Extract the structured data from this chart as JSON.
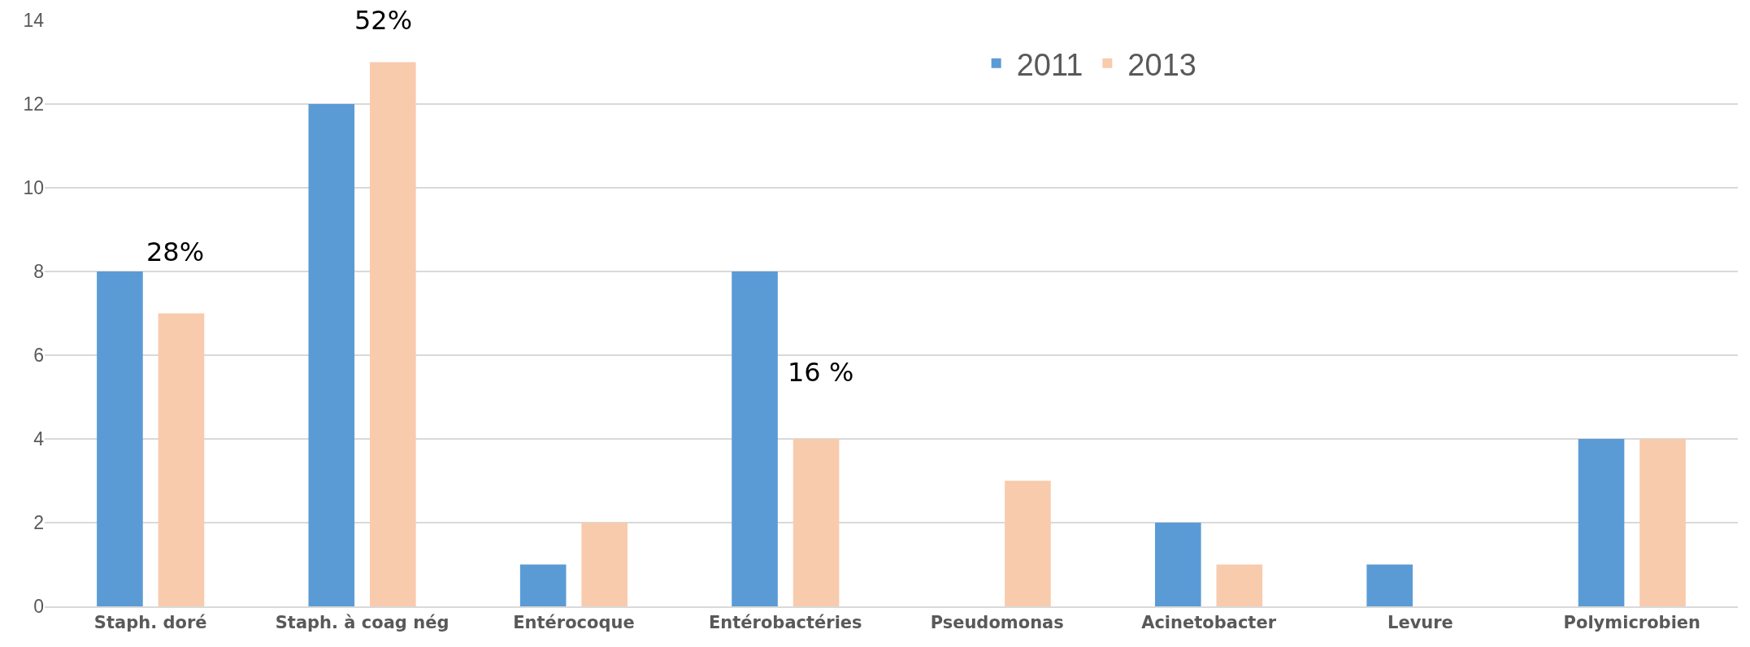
{
  "chart_data": {
    "type": "bar",
    "categories": [
      "Staph. doré",
      "Staph. à coag nég",
      "Entérocoque",
      "Entérobactéries",
      "Pseudomonas",
      "Acinetobacter",
      "Levure",
      "Polymicrobien"
    ],
    "series": [
      {
        "name": "2011",
        "color": "#5b9bd5",
        "values": [
          8,
          12,
          1,
          8,
          0,
          2,
          1,
          4
        ]
      },
      {
        "name": "2013",
        "color": "#f8cbad",
        "values": [
          7,
          13,
          2,
          4,
          3,
          1,
          0,
          4
        ]
      }
    ],
    "ylim": [
      0,
      14
    ],
    "yticks": [
      0,
      2,
      4,
      6,
      8,
      10,
      12,
      14
    ],
    "grid": "y",
    "legend": "top",
    "annotations": [
      "28%",
      "52%",
      "16 %"
    ]
  }
}
